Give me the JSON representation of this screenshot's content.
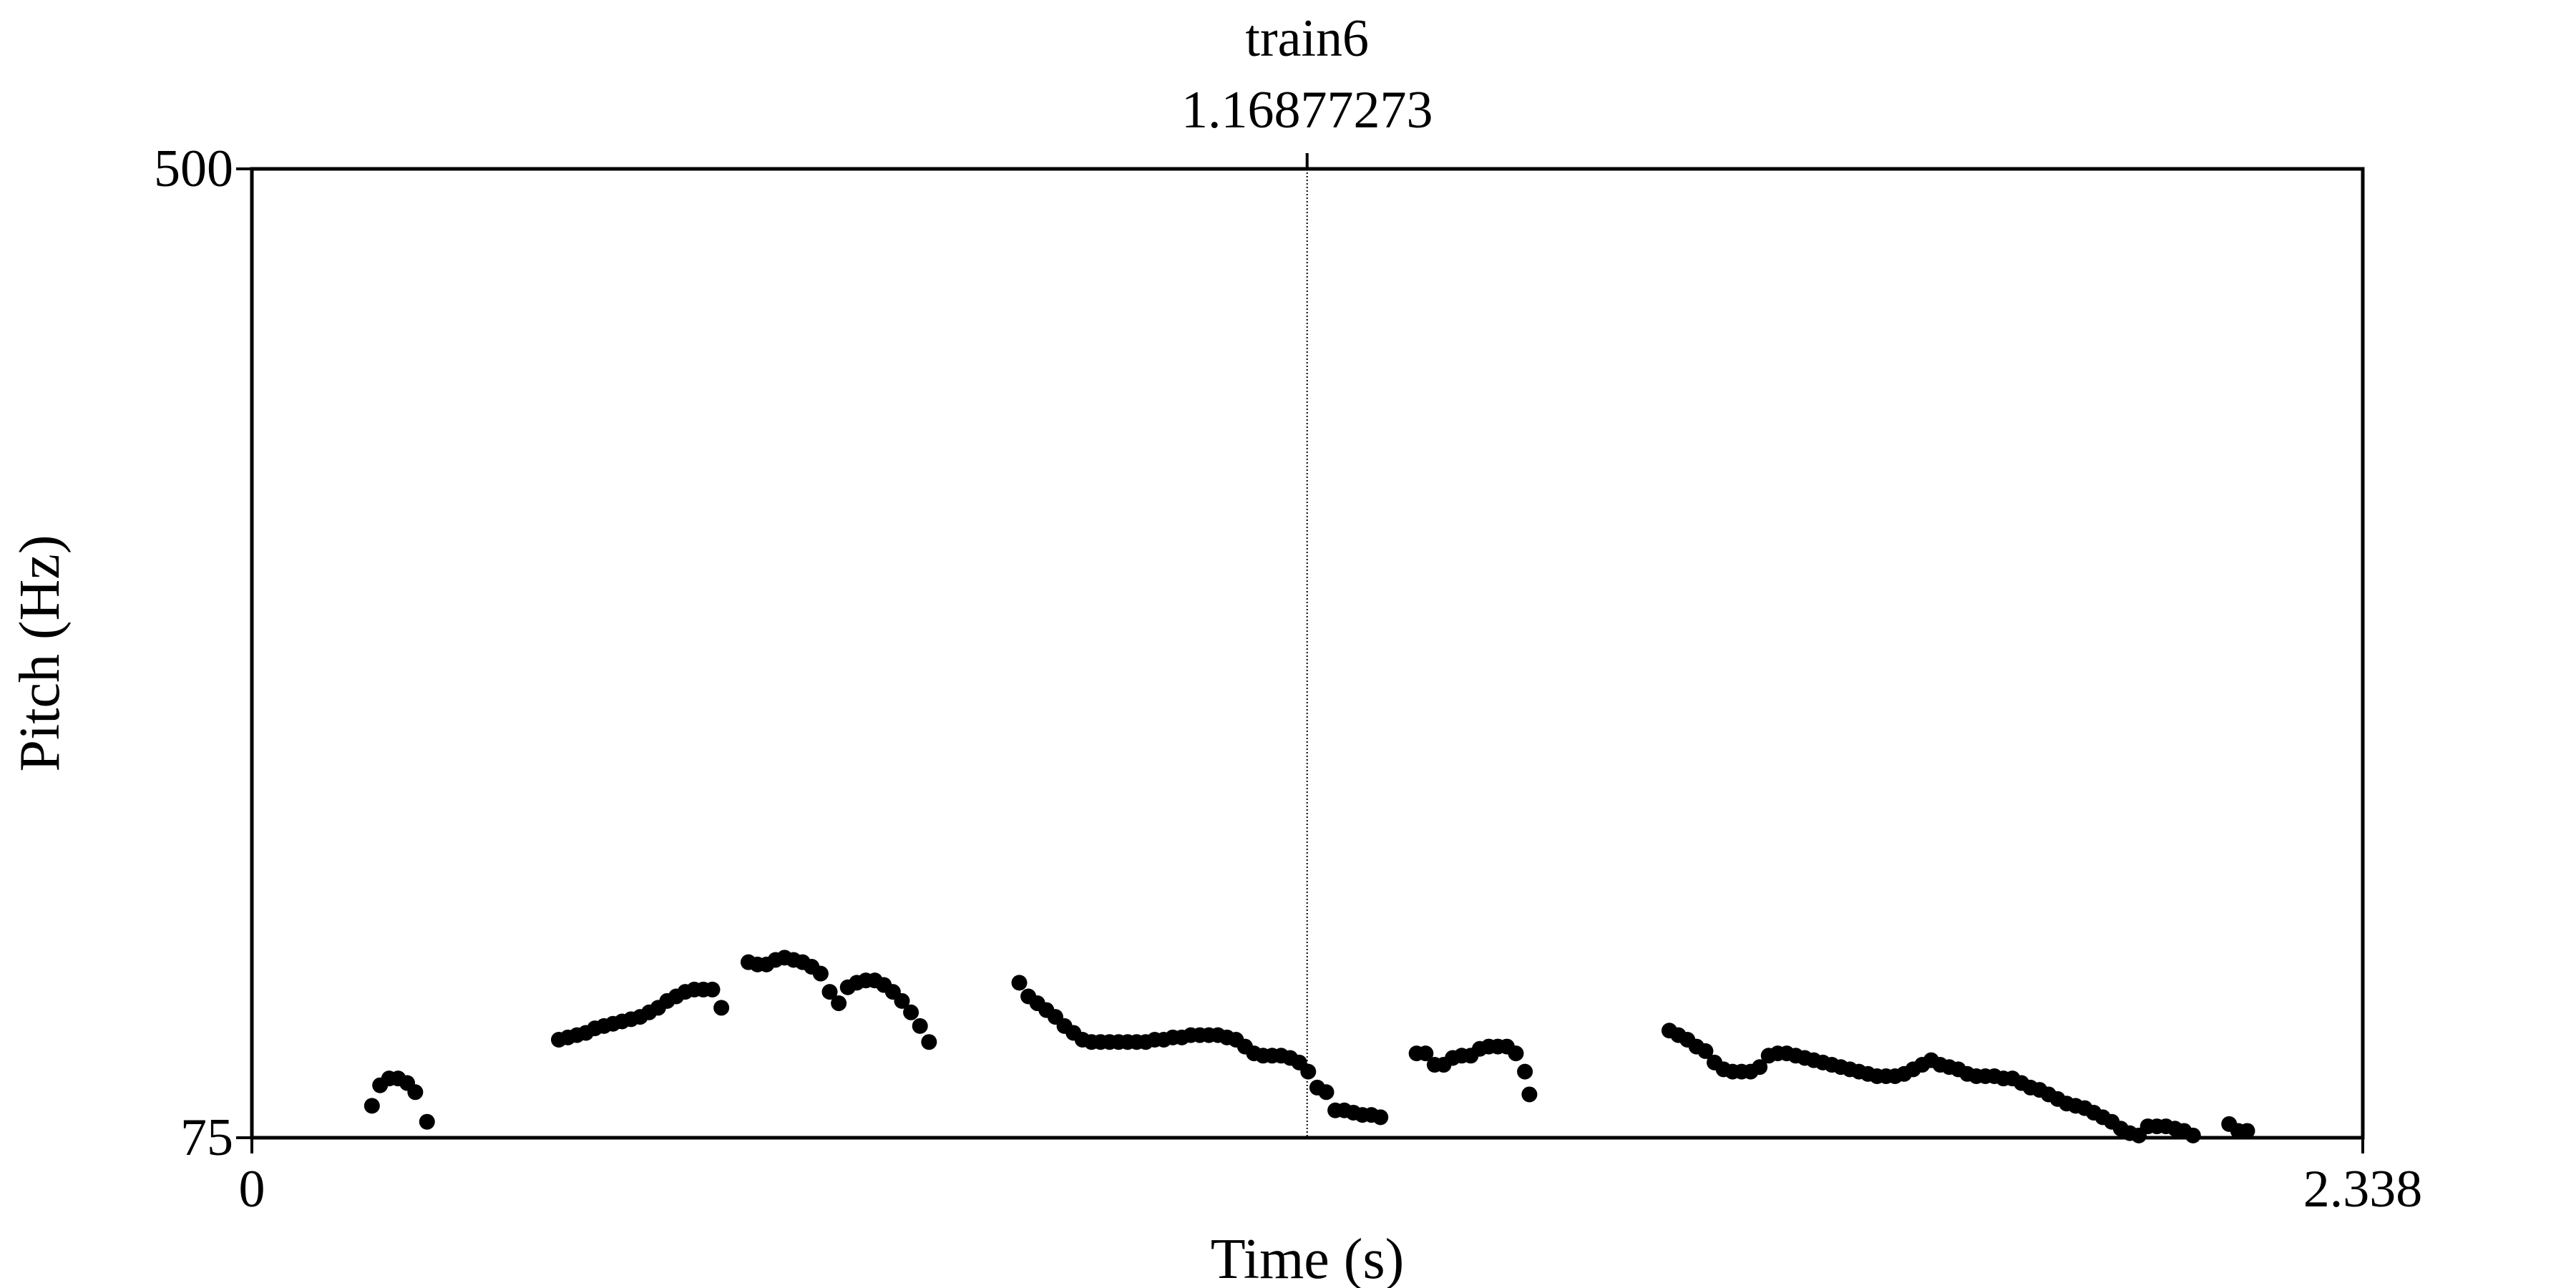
{
  "chart_data": {
    "type": "scatter",
    "title": "train6",
    "cursor": {
      "label": "1.16877273",
      "x": 1.16877273
    },
    "xlabel": "Time (s)",
    "ylabel": "Pitch (Hz)",
    "xlim": [
      0,
      2.338
    ],
    "ylim": [
      75,
      500
    ],
    "x_tick_labels": [
      "0",
      "2.338"
    ],
    "y_tick_labels": [
      "75",
      "500"
    ],
    "grid": false,
    "series": [
      {
        "color": "#000000",
        "points": [
          [
            0.133,
            89
          ],
          [
            0.142,
            98
          ],
          [
            0.152,
            101
          ],
          [
            0.162,
            101
          ],
          [
            0.172,
            99
          ],
          [
            0.181,
            95
          ],
          [
            0.194,
            82
          ],
          [
            0.34,
            118
          ],
          [
            0.35,
            119
          ],
          [
            0.36,
            120
          ],
          [
            0.37,
            121
          ],
          [
            0.38,
            123
          ],
          [
            0.39,
            124
          ],
          [
            0.4,
            125
          ],
          [
            0.41,
            126
          ],
          [
            0.42,
            127
          ],
          [
            0.43,
            128
          ],
          [
            0.44,
            130
          ],
          [
            0.45,
            132
          ],
          [
            0.46,
            135
          ],
          [
            0.47,
            137
          ],
          [
            0.48,
            139
          ],
          [
            0.49,
            140
          ],
          [
            0.5,
            140
          ],
          [
            0.51,
            140
          ],
          [
            0.52,
            132
          ],
          [
            0.55,
            152
          ],
          [
            0.56,
            151
          ],
          [
            0.57,
            151
          ],
          [
            0.58,
            153
          ],
          [
            0.59,
            154
          ],
          [
            0.6,
            153
          ],
          [
            0.61,
            152
          ],
          [
            0.62,
            150
          ],
          [
            0.63,
            147
          ],
          [
            0.64,
            139
          ],
          [
            0.65,
            134
          ],
          [
            0.66,
            141
          ],
          [
            0.67,
            143
          ],
          [
            0.68,
            144
          ],
          [
            0.69,
            144
          ],
          [
            0.7,
            142
          ],
          [
            0.71,
            139
          ],
          [
            0.72,
            135
          ],
          [
            0.73,
            130
          ],
          [
            0.74,
            124
          ],
          [
            0.75,
            117
          ],
          [
            0.85,
            143
          ],
          [
            0.86,
            137
          ],
          [
            0.87,
            134
          ],
          [
            0.88,
            131
          ],
          [
            0.89,
            128
          ],
          [
            0.9,
            124
          ],
          [
            0.91,
            121
          ],
          [
            0.92,
            118
          ],
          [
            0.93,
            117
          ],
          [
            0.94,
            117
          ],
          [
            0.95,
            117
          ],
          [
            0.96,
            117
          ],
          [
            0.97,
            117
          ],
          [
            0.98,
            117
          ],
          [
            0.99,
            117
          ],
          [
            1.0,
            118
          ],
          [
            1.01,
            118
          ],
          [
            1.02,
            119
          ],
          [
            1.03,
            119
          ],
          [
            1.04,
            120
          ],
          [
            1.05,
            120
          ],
          [
            1.06,
            120
          ],
          [
            1.07,
            120
          ],
          [
            1.08,
            119
          ],
          [
            1.09,
            118
          ],
          [
            1.1,
            115
          ],
          [
            1.11,
            112
          ],
          [
            1.12,
            111
          ],
          [
            1.13,
            111
          ],
          [
            1.14,
            111
          ],
          [
            1.15,
            110
          ],
          [
            1.16,
            108
          ],
          [
            1.17,
            104
          ],
          [
            1.18,
            97
          ],
          [
            1.19,
            95
          ],
          [
            1.2,
            87
          ],
          [
            1.21,
            87
          ],
          [
            1.22,
            86
          ],
          [
            1.23,
            85
          ],
          [
            1.24,
            85
          ],
          [
            1.25,
            84
          ],
          [
            1.29,
            112
          ],
          [
            1.3,
            112
          ],
          [
            1.31,
            107
          ],
          [
            1.32,
            107
          ],
          [
            1.33,
            110
          ],
          [
            1.34,
            111
          ],
          [
            1.35,
            111
          ],
          [
            1.36,
            114
          ],
          [
            1.37,
            115
          ],
          [
            1.38,
            115
          ],
          [
            1.39,
            115
          ],
          [
            1.4,
            112
          ],
          [
            1.41,
            104
          ],
          [
            1.415,
            94
          ],
          [
            1.57,
            122
          ],
          [
            1.58,
            120
          ],
          [
            1.59,
            118
          ],
          [
            1.6,
            115
          ],
          [
            1.61,
            113
          ],
          [
            1.62,
            108
          ],
          [
            1.63,
            105
          ],
          [
            1.64,
            104
          ],
          [
            1.65,
            104
          ],
          [
            1.66,
            104
          ],
          [
            1.67,
            106
          ],
          [
            1.68,
            111
          ],
          [
            1.69,
            112
          ],
          [
            1.7,
            112
          ],
          [
            1.71,
            111
          ],
          [
            1.72,
            110
          ],
          [
            1.73,
            109
          ],
          [
            1.74,
            108
          ],
          [
            1.75,
            107
          ],
          [
            1.76,
            106
          ],
          [
            1.77,
            105
          ],
          [
            1.78,
            104
          ],
          [
            1.79,
            103
          ],
          [
            1.8,
            102
          ],
          [
            1.81,
            102
          ],
          [
            1.82,
            102
          ],
          [
            1.83,
            103
          ],
          [
            1.84,
            105
          ],
          [
            1.85,
            107
          ],
          [
            1.86,
            109
          ],
          [
            1.87,
            107
          ],
          [
            1.88,
            106
          ],
          [
            1.89,
            105
          ],
          [
            1.9,
            103
          ],
          [
            1.91,
            102
          ],
          [
            1.92,
            102
          ],
          [
            1.93,
            102
          ],
          [
            1.94,
            101
          ],
          [
            1.95,
            101
          ],
          [
            1.96,
            99
          ],
          [
            1.97,
            97
          ],
          [
            1.98,
            96
          ],
          [
            1.99,
            94
          ],
          [
            2.0,
            92
          ],
          [
            2.01,
            90
          ],
          [
            2.02,
            89
          ],
          [
            2.03,
            88
          ],
          [
            2.04,
            86
          ],
          [
            2.05,
            84
          ],
          [
            2.06,
            82
          ],
          [
            2.07,
            79
          ],
          [
            2.08,
            77
          ],
          [
            2.09,
            76
          ],
          [
            2.1,
            80
          ],
          [
            2.11,
            80
          ],
          [
            2.12,
            80
          ],
          [
            2.13,
            79
          ],
          [
            2.14,
            78
          ],
          [
            2.15,
            76
          ],
          [
            2.19,
            81
          ],
          [
            2.2,
            78
          ],
          [
            2.21,
            78
          ]
        ]
      }
    ]
  }
}
